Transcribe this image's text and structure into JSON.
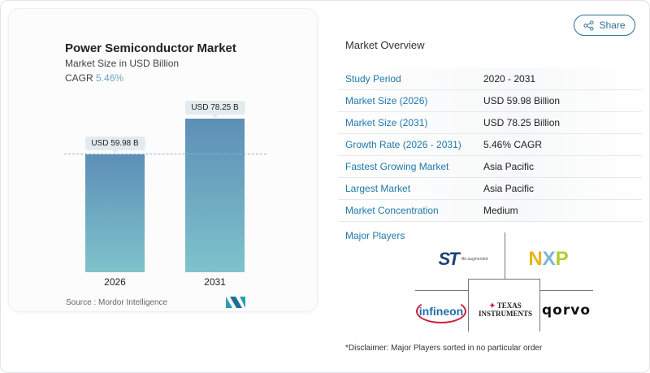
{
  "header": {
    "share_label": "Share"
  },
  "chart_data": {
    "type": "bar",
    "title": "Power Semiconductor Market",
    "subtitle": "Market Size in USD Billion",
    "cagr_label": "CAGR",
    "cagr_value": "5.46%",
    "categories": [
      "2026",
      "2031"
    ],
    "values": [
      59.98,
      78.25
    ],
    "data_labels": [
      "USD 59.98 B",
      "USD 78.25 B"
    ],
    "colors": [
      "#5c8fb6",
      "#7fc3cc"
    ],
    "grid": false
  },
  "source": "Source :  Mordor Intelligence",
  "overview": {
    "title": "Market Overview",
    "rows": [
      {
        "label": "Study Period",
        "value": "2020 - 2031"
      },
      {
        "label": "Market Size (2026)",
        "value": "USD 59.98 Billion"
      },
      {
        "label": "Market Size (2031)",
        "value": "USD 78.25 Billion"
      },
      {
        "label": "Growth Rate (2026 - 2031)",
        "value": "5.46% CAGR"
      },
      {
        "label": "Fastest Growing Market",
        "value": "Asia Pacific"
      },
      {
        "label": "Largest Market",
        "value": "Asia Pacific"
      },
      {
        "label": "Market Concentration",
        "value": "Medium"
      }
    ]
  },
  "players": {
    "title": "Major Players",
    "logos": [
      "ST life.augmented",
      "NXP",
      "Infineon",
      "Texas Instruments",
      "Qorvo"
    ],
    "st_tag": "life.augmented",
    "disclaimer": "*Disclaimer: Major Players sorted in no particular order"
  }
}
